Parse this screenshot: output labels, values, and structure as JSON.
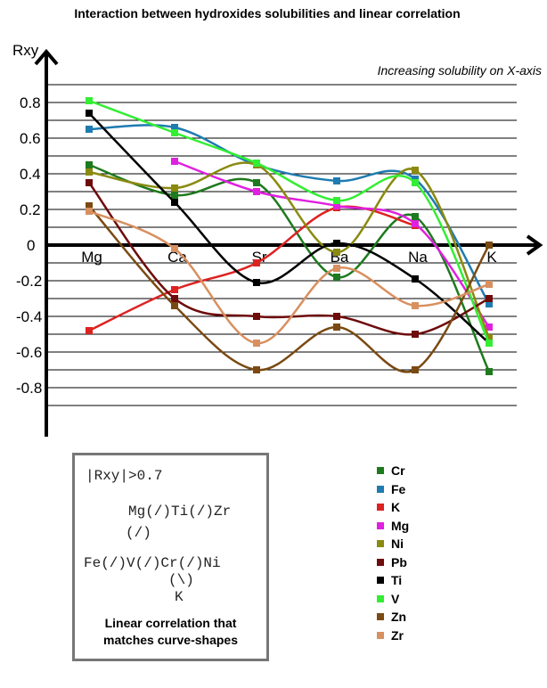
{
  "chart_data": {
    "type": "line",
    "title": "Interaction between hydroxides solubilities and linear correlation",
    "ylabel": "Rxy",
    "annotation": "Increasing solubility on X-axis",
    "categories": [
      "Mg",
      "Ca",
      "Sr",
      "Ba",
      "Na",
      "K"
    ],
    "ylim": [
      -0.9,
      0.9
    ],
    "yticks": [
      "0.8",
      "0.6",
      "0.4",
      "0.2",
      "0",
      "-0.2",
      "-0.4",
      "-0.6",
      "-0.8"
    ],
    "grid": true,
    "legend_position": "bottom-right",
    "series": [
      {
        "name": "Cr",
        "color": "#1e7a1e",
        "values": [
          0.45,
          0.28,
          0.35,
          -0.18,
          0.16,
          -0.71
        ]
      },
      {
        "name": "Fe",
        "color": "#1f7bb0",
        "values": [
          0.65,
          0.66,
          0.45,
          0.36,
          0.37,
          -0.33
        ]
      },
      {
        "name": "K",
        "color": "#dd2222",
        "values": [
          -0.48,
          -0.25,
          -0.1,
          0.21,
          0.11,
          null
        ]
      },
      {
        "name": "Mg",
        "color": "#e020e0",
        "values": [
          null,
          0.47,
          0.3,
          0.22,
          0.12,
          -0.46
        ]
      },
      {
        "name": "Ni",
        "color": "#8a8a10",
        "values": [
          0.41,
          0.32,
          0.45,
          -0.04,
          0.42,
          -0.52
        ]
      },
      {
        "name": "Pb",
        "color": "#6e0b0b",
        "values": [
          0.35,
          -0.3,
          -0.4,
          -0.4,
          -0.5,
          -0.3
        ]
      },
      {
        "name": "Ti",
        "color": "#000000",
        "values": [
          0.74,
          0.24,
          -0.21,
          0.01,
          -0.19,
          -0.55
        ]
      },
      {
        "name": "V",
        "color": "#33ee33",
        "values": [
          0.81,
          0.63,
          0.46,
          0.25,
          0.35,
          -0.55
        ]
      },
      {
        "name": "Zn",
        "color": "#7a4a12",
        "values": [
          0.22,
          -0.34,
          -0.7,
          -0.46,
          -0.7,
          0.0
        ]
      },
      {
        "name": "Zr",
        "color": "#d89060",
        "values": [
          0.19,
          -0.02,
          -0.55,
          -0.13,
          -0.34,
          -0.22
        ]
      }
    ]
  },
  "info_box": {
    "threshold": "|Rxy|>0.7",
    "line1": "Mg(/)Ti(/)Zr",
    "line2": "(/)",
    "line3": "Fe(/)V(/)Cr(/)Ni",
    "line4": "(\\)",
    "line5": "K",
    "caption1": "Linear correlation that",
    "caption2": "matches curve-shapes"
  }
}
